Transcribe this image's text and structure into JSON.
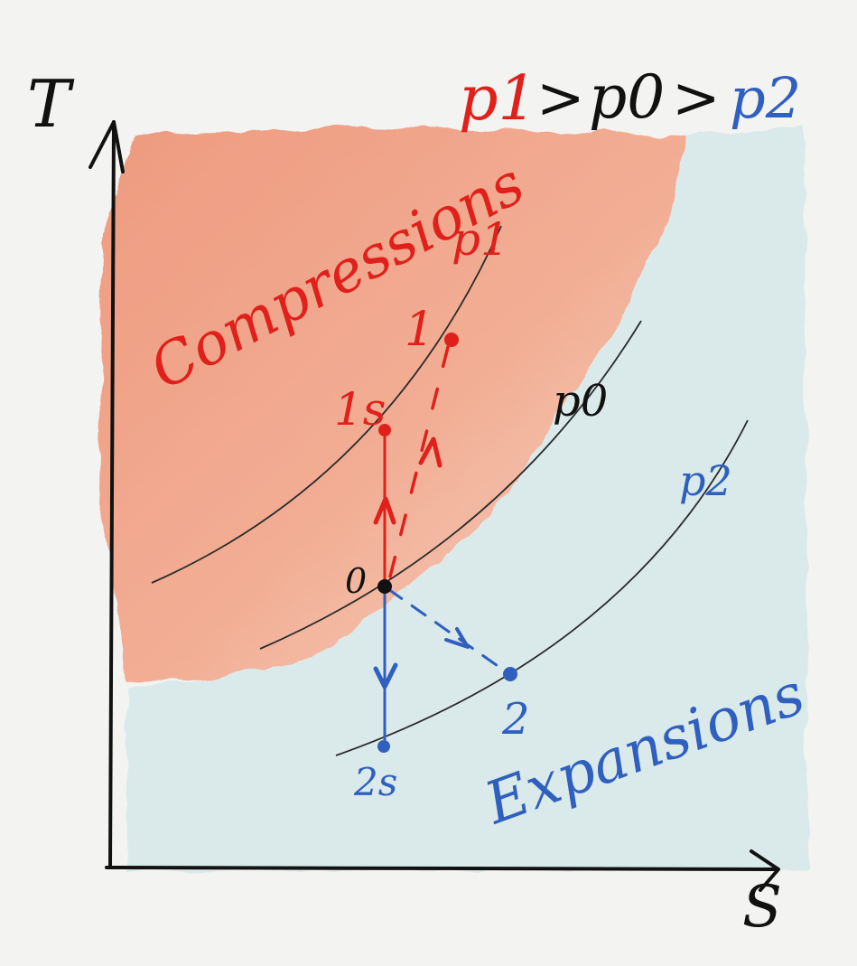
{
  "axes": {
    "y_label": "T",
    "x_label": "S"
  },
  "legend_relation": {
    "p1": "p1",
    "gt1": ">",
    "p0": "p0",
    "gt2": ">",
    "p2": "p2"
  },
  "regions": {
    "compressions_label": "Compressions",
    "expansions_label": "Expansions"
  },
  "isobars": {
    "p1_label": "p1",
    "p0_label": "p0",
    "p2_label": "p2"
  },
  "points": {
    "state_0": "0",
    "state_1": "1",
    "state_1s": "1s",
    "state_2": "2",
    "state_2s": "2s"
  },
  "colors": {
    "compression_region": "#ef9a7c",
    "expansion_region": "#d6e9e9",
    "compression_ink": "#e0201a",
    "expansion_ink": "#2f5fbf",
    "neutral_ink": "#111111",
    "isobar_line": "#2a2a2a"
  }
}
